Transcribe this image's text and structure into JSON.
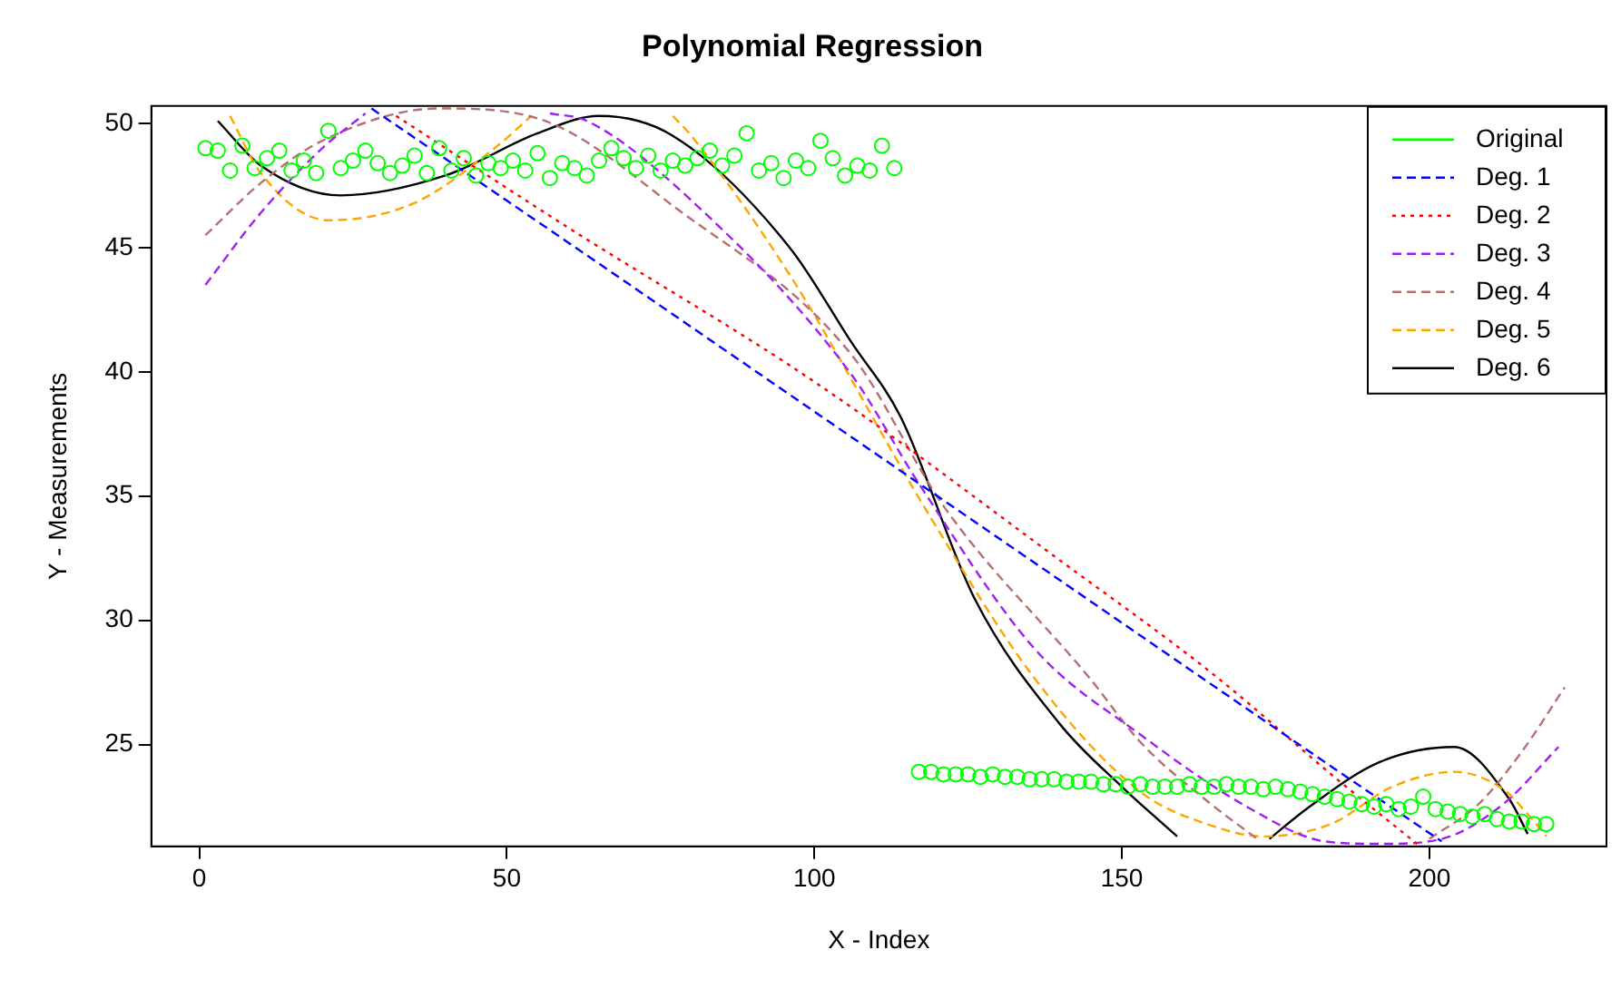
{
  "chart_data": {
    "type": "line",
    "title": "Polynomial Regression",
    "xlabel": "X - Index",
    "ylabel": "Y - Measurements",
    "xlim": [
      -7.8,
      228.8
    ],
    "ylim": [
      20.9,
      50.7
    ],
    "xticks": [
      0,
      50,
      100,
      150,
      200
    ],
    "yticks": [
      25,
      30,
      35,
      40,
      45,
      50
    ],
    "grid": false,
    "legend": "top right",
    "series": [
      {
        "name": "Original",
        "type": "scatter",
        "marker": "circle",
        "color": "#00ff00",
        "x": [
          1,
          3,
          5,
          7,
          9,
          11,
          13,
          15,
          17,
          19,
          21,
          23,
          25,
          27,
          29,
          31,
          33,
          35,
          37,
          39,
          41,
          43,
          45,
          47,
          49,
          51,
          53,
          55,
          57,
          59,
          61,
          63,
          65,
          67,
          69,
          71,
          73,
          75,
          77,
          79,
          81,
          83,
          85,
          87,
          89,
          91,
          93,
          95,
          97,
          99,
          101,
          103,
          105,
          107,
          109,
          111,
          113,
          117,
          119,
          121,
          123,
          125,
          127,
          129,
          131,
          133,
          135,
          137,
          139,
          141,
          143,
          145,
          147,
          149,
          151,
          153,
          155,
          157,
          159,
          161,
          163,
          165,
          167,
          169,
          171,
          173,
          175,
          177,
          179,
          181,
          183,
          185,
          187,
          189,
          191,
          193,
          195,
          197,
          199,
          201,
          203,
          205,
          207,
          209,
          211,
          213,
          215,
          217,
          219
        ],
        "values": [
          49.0,
          48.9,
          48.1,
          49.1,
          48.2,
          48.6,
          48.9,
          48.1,
          48.5,
          48.0,
          49.7,
          48.2,
          48.5,
          48.9,
          48.4,
          48.0,
          48.3,
          48.7,
          48.0,
          49.0,
          48.1,
          48.6,
          47.9,
          48.4,
          48.2,
          48.5,
          48.1,
          48.8,
          47.8,
          48.4,
          48.2,
          47.9,
          48.5,
          49.0,
          48.6,
          48.2,
          48.7,
          48.1,
          48.5,
          48.3,
          48.6,
          48.9,
          48.3,
          48.7,
          49.6,
          48.1,
          48.4,
          47.8,
          48.5,
          48.2,
          49.3,
          48.6,
          47.9,
          48.3,
          48.1,
          49.1,
          48.2,
          23.9,
          23.9,
          23.8,
          23.8,
          23.8,
          23.7,
          23.8,
          23.7,
          23.7,
          23.6,
          23.6,
          23.6,
          23.5,
          23.5,
          23.5,
          23.4,
          23.4,
          23.3,
          23.4,
          23.3,
          23.3,
          23.3,
          23.4,
          23.3,
          23.3,
          23.4,
          23.3,
          23.3,
          23.2,
          23.3,
          23.2,
          23.1,
          23.0,
          22.9,
          22.8,
          22.7,
          22.6,
          22.5,
          22.6,
          22.4,
          22.5,
          22.9,
          22.4,
          22.3,
          22.2,
          22.1,
          22.2,
          22.0,
          21.9,
          21.9,
          21.8,
          21.8
        ]
      },
      {
        "name": "Deg. 1",
        "type": "line",
        "line_style": "dashed",
        "color": "#0000ff",
        "x": [
          28,
          60,
          100,
          140,
          180,
          202
        ],
        "values": [
          50.6,
          45.2,
          38.4,
          31.6,
          24.8,
          21.1
        ]
      },
      {
        "name": "Deg. 2",
        "type": "line",
        "line_style": "dotted",
        "color": "#ff0000",
        "x": [
          32,
          60,
          100,
          140,
          165,
          185,
          198
        ],
        "values": [
          50.3,
          45.8,
          39.6,
          32.4,
          27.8,
          23.6,
          21.0
        ]
      },
      {
        "name": "Deg. 3",
        "type": "line",
        "line_style": "dashed",
        "color": "#a020f0",
        "x": [
          1,
          10,
          20,
          27,
          null,
          57,
          63,
          80,
          106,
          117,
          136,
          153,
          171,
          183,
          192,
          202,
          212,
          221
        ],
        "values": [
          43.5,
          46.4,
          49.0,
          50.4,
          null,
          50.4,
          50.1,
          46.9,
          39.9,
          35.5,
          28.8,
          25.4,
          22.4,
          21.1,
          21.0,
          21.2,
          22.6,
          24.9
        ]
      },
      {
        "name": "Deg. 4",
        "type": "line",
        "line_style": "dashed",
        "color": "#b5706f",
        "x": [
          1,
          10,
          20,
          39,
          55,
          78,
          106,
          121,
          145,
          153,
          164,
          172,
          null,
          200,
          208,
          215,
          222
        ],
        "values": [
          45.5,
          47.6,
          49.3,
          50.6,
          50.2,
          46.5,
          40.7,
          34.6,
          27.6,
          25.1,
          22.7,
          21.2,
          null,
          21.2,
          22.6,
          24.7,
          27.3
        ]
      },
      {
        "name": "Deg. 5",
        "type": "line",
        "line_style": "dashed",
        "color": "#ffa500",
        "x": [
          5,
          10,
          21,
          35,
          48,
          54,
          null,
          77,
          80,
          96,
          119,
          136,
          153,
          165,
          173,
          184,
          194,
          204,
          212,
          216,
          219
        ],
        "values": [
          50.3,
          48.0,
          46.1,
          46.8,
          49.0,
          50.3,
          null,
          50.3,
          49.5,
          43.9,
          34.1,
          27.6,
          23.1,
          21.7,
          21.3,
          21.8,
          23.3,
          23.9,
          23.2,
          22.2,
          21.3
        ]
      },
      {
        "name": "Deg. 6",
        "type": "line",
        "line_style": "solid",
        "color": "#000000",
        "x": [
          3,
          10,
          23,
          40,
          55,
          65,
          77,
          96,
          106,
          114,
          126,
          140,
          150,
          159,
          null,
          174,
          180,
          192,
          204,
          213,
          216
        ],
        "values": [
          50.1,
          48.3,
          47.1,
          47.9,
          49.6,
          50.3,
          49.5,
          45.0,
          41.2,
          38.2,
          30.9,
          25.8,
          23.3,
          21.3,
          null,
          21.2,
          22.4,
          24.3,
          24.9,
          22.8,
          21.4
        ]
      }
    ]
  }
}
